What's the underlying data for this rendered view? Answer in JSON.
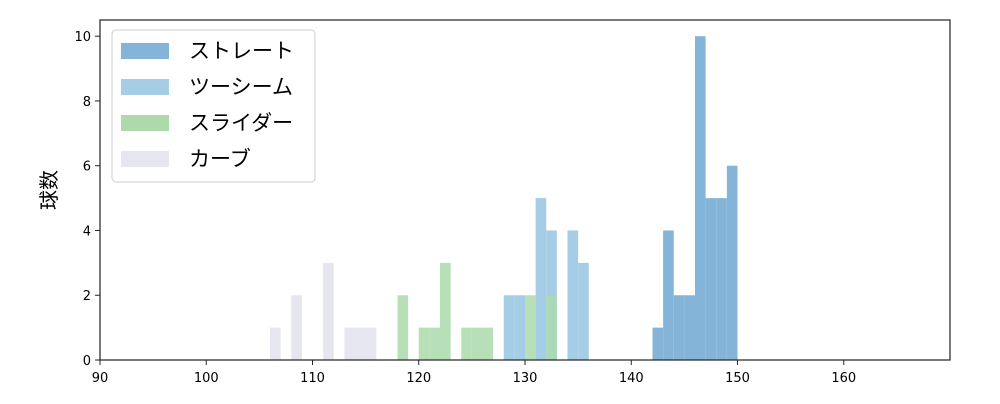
{
  "chart_data": {
    "type": "bar",
    "subtype": "histogram",
    "xlabel": "",
    "ylabel": "球数",
    "xlim": [
      90,
      170
    ],
    "ylim": [
      0,
      10.5
    ],
    "xticks": [
      90,
      100,
      110,
      120,
      130,
      140,
      150,
      160
    ],
    "yticks": [
      0,
      2,
      4,
      6,
      8,
      10
    ],
    "bin_width": 1,
    "grid": false,
    "legend_position": "top-left",
    "series": [
      {
        "name": "ストレート",
        "color": "#84b4d8",
        "bins": [
          [
            142,
            1
          ],
          [
            143,
            4
          ],
          [
            144,
            2
          ],
          [
            145,
            2
          ],
          [
            146,
            10
          ],
          [
            147,
            5
          ],
          [
            148,
            5
          ],
          [
            149,
            6
          ]
        ]
      },
      {
        "name": "ツーシーム",
        "color": "#a6cde6",
        "bins": [
          [
            128,
            2
          ],
          [
            129,
            2
          ],
          [
            131,
            5
          ],
          [
            132,
            4
          ],
          [
            134,
            4
          ],
          [
            135,
            3
          ]
        ]
      },
      {
        "name": "スライダー",
        "color": "#acdaab",
        "bins": [
          [
            118,
            2
          ],
          [
            120,
            1
          ],
          [
            121,
            1
          ],
          [
            122,
            3
          ],
          [
            124,
            1
          ],
          [
            125,
            1
          ],
          [
            126,
            1
          ],
          [
            130,
            2
          ],
          [
            132,
            2
          ]
        ]
      },
      {
        "name": "カーブ",
        "color": "#e6e6f0",
        "bins": [
          [
            106,
            1
          ],
          [
            108,
            2
          ],
          [
            111,
            3
          ],
          [
            113,
            1
          ],
          [
            114,
            1
          ],
          [
            115,
            1
          ]
        ]
      }
    ]
  }
}
